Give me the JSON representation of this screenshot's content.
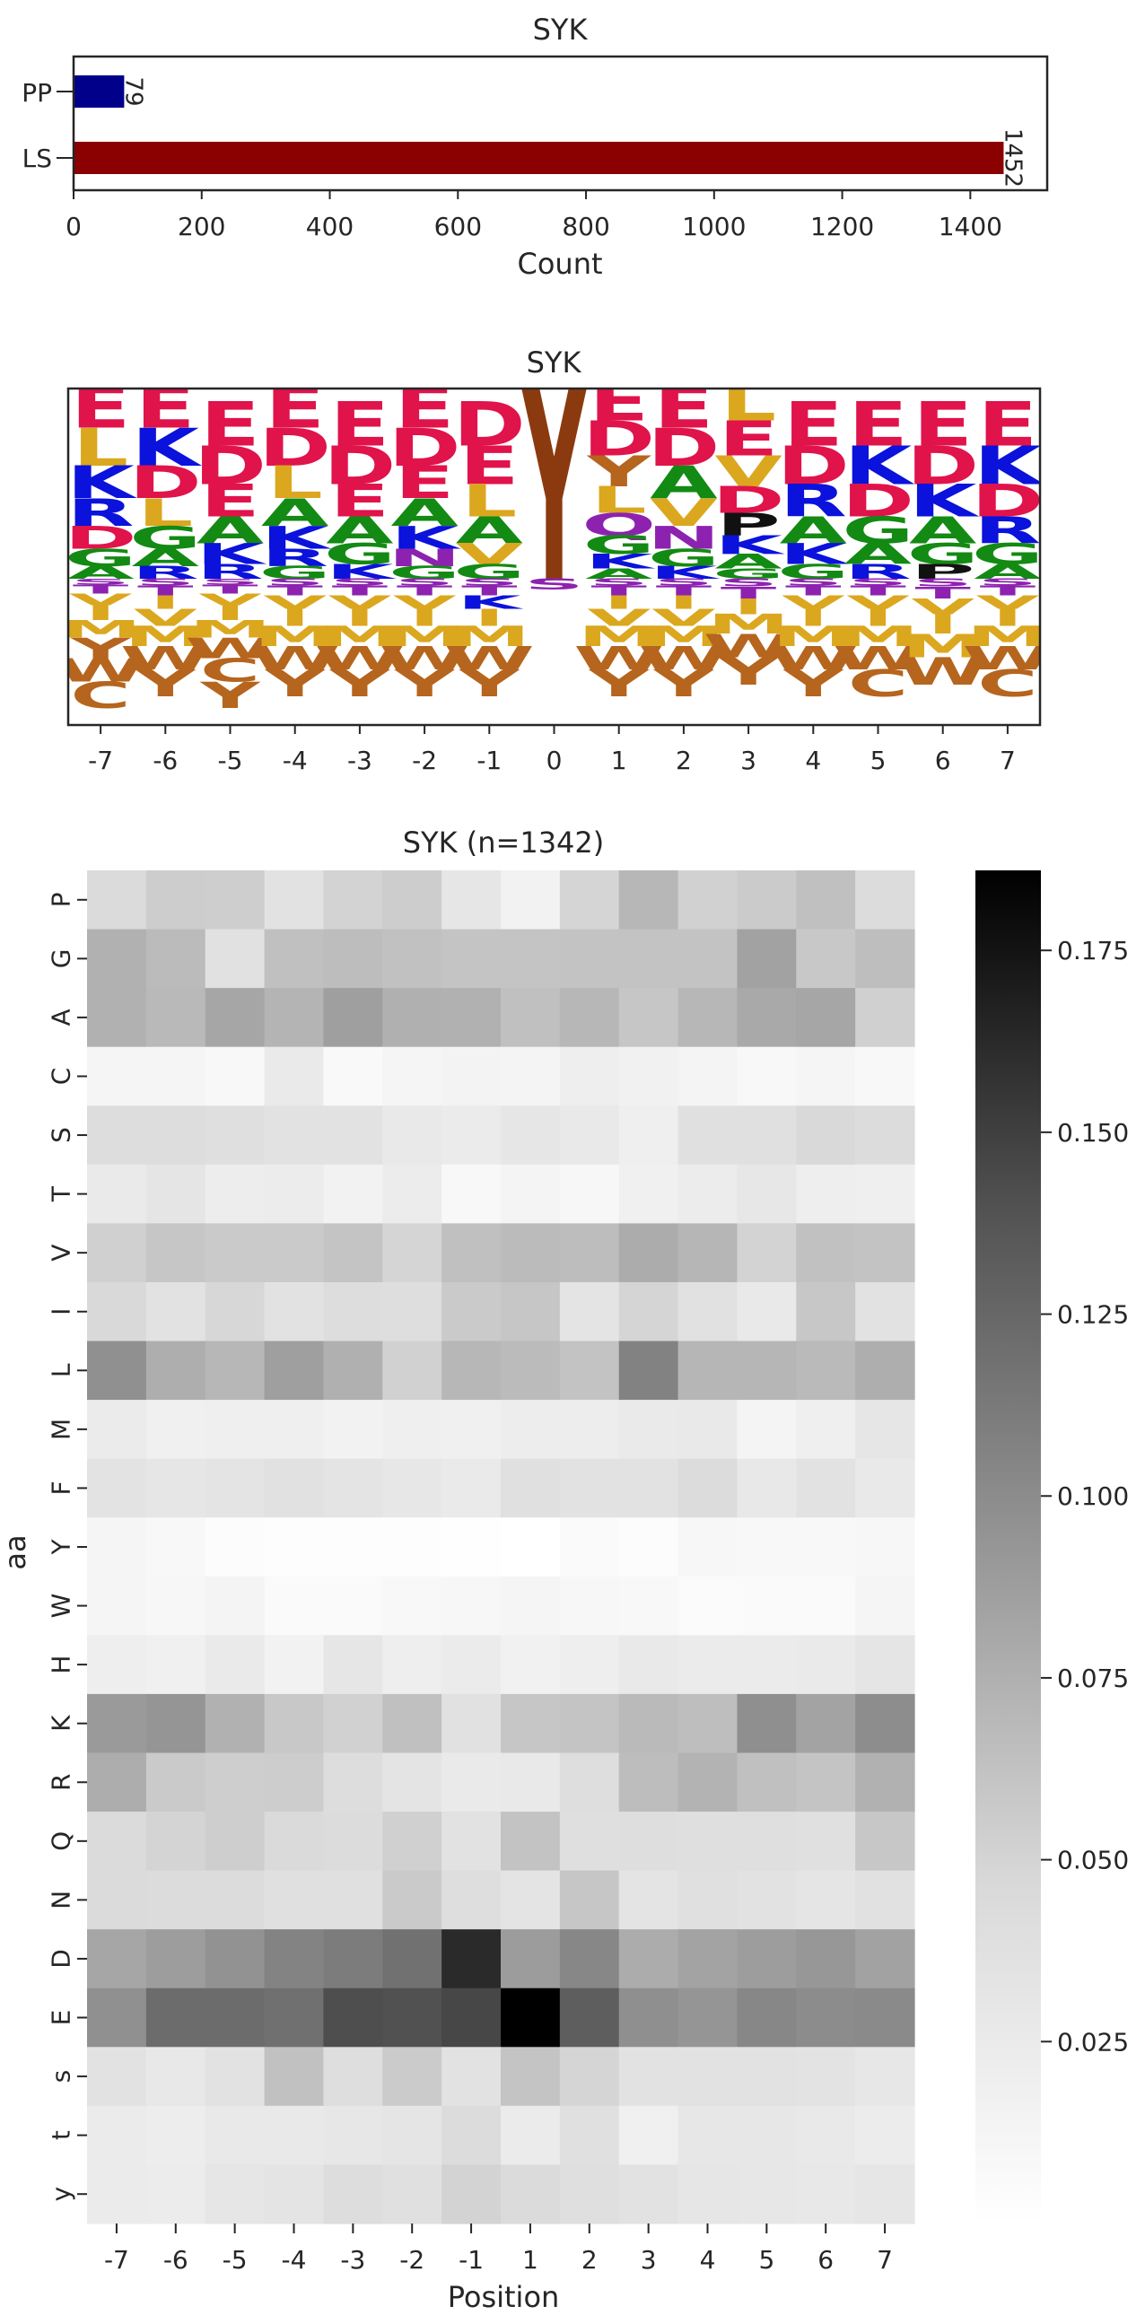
{
  "chart_data": [
    {
      "type": "bar",
      "orientation": "horizontal",
      "title": "SYK",
      "xlabel": "Count",
      "ylabel": "",
      "categories": [
        "PP",
        "LS"
      ],
      "values": [
        79,
        1452
      ],
      "value_labels": [
        "79",
        "1452"
      ],
      "colors": [
        "#00008b",
        "#8b0000"
      ],
      "xlim": [
        0,
        1520
      ],
      "xticks": [
        0,
        200,
        400,
        600,
        800,
        1000,
        1200,
        1400
      ],
      "xtick_labels": [
        "0",
        "200",
        "400",
        "600",
        "800",
        "1000",
        "1200",
        "1400"
      ],
      "grid": false
    },
    {
      "type": "sequence_logo",
      "title": "SYK",
      "positions": [
        "-7",
        "-6",
        "-5",
        "-4",
        "-3",
        "-2",
        "-1",
        "0",
        "1",
        "2",
        "3",
        "4",
        "5",
        "6",
        "7"
      ],
      "color_scheme": {
        "acidic": "#e0134b",
        "basic": "#0a12dc",
        "hydrophobic_L_I_V": "#dba71e",
        "hydrophobic_A_G": "#138a13",
        "polar": "#8d22b0",
        "aromatic": "#b5651d",
        "tyrosine_center": "#8b3a10",
        "serine": "#8d22b0",
        "other": "#111111"
      },
      "letters": [
        {
          "pos": "-7",
          "up": [
            "E",
            "L",
            "K",
            "R",
            "D",
            "G",
            "A"
          ],
          "down": [
            "S",
            "T",
            "V",
            "I",
            "M",
            "Y",
            "W",
            "C"
          ]
        },
        {
          "pos": "-6",
          "up": [
            "E",
            "K",
            "D",
            "L",
            "G",
            "A",
            "R"
          ],
          "down": [
            "S",
            "T",
            "I",
            "V",
            "M",
            "W",
            "Y"
          ]
        },
        {
          "pos": "-5",
          "up": [
            "E",
            "D",
            "E",
            "A",
            "K",
            "R"
          ],
          "down": [
            "S",
            "T",
            "V",
            "I",
            "M",
            "W",
            "C",
            "Y"
          ]
        },
        {
          "pos": "-4",
          "up": [
            "E",
            "D",
            "L",
            "A",
            "K",
            "R",
            "G"
          ],
          "down": [
            "S",
            "T",
            "V",
            "I",
            "M",
            "W",
            "Y"
          ]
        },
        {
          "pos": "-3",
          "up": [
            "E",
            "D",
            "E",
            "A",
            "G",
            "K"
          ],
          "down": [
            "S",
            "T",
            "V",
            "I",
            "M",
            "W",
            "Y"
          ]
        },
        {
          "pos": "-2",
          "up": [
            "E",
            "D",
            "E",
            "A",
            "K",
            "N",
            "G"
          ],
          "down": [
            "S",
            "T",
            "V",
            "I",
            "M",
            "W",
            "Y"
          ]
        },
        {
          "pos": "-1",
          "up": [
            "D",
            "E",
            "L",
            "A",
            "V",
            "G"
          ],
          "down": [
            "S",
            "T",
            "K",
            "I",
            "M",
            "W",
            "Y"
          ]
        },
        {
          "pos": "0",
          "up": [
            "Y"
          ],
          "down": [
            "S"
          ]
        },
        {
          "pos": "1",
          "up": [
            "E",
            "D",
            "Y",
            "L",
            "Q",
            "G",
            "K",
            "A"
          ],
          "down": [
            "S",
            "T",
            "I",
            "V",
            "M",
            "W",
            "Y"
          ]
        },
        {
          "pos": "2",
          "up": [
            "E",
            "D",
            "A",
            "V",
            "N",
            "G",
            "K"
          ],
          "down": [
            "S",
            "T",
            "I",
            "V",
            "M",
            "W",
            "Y"
          ]
        },
        {
          "pos": "3",
          "up": [
            "L",
            "E",
            "V",
            "D",
            "P",
            "K",
            "A",
            "G"
          ],
          "down": [
            "S",
            "T",
            "I",
            "M",
            "W",
            "Y"
          ]
        },
        {
          "pos": "4",
          "up": [
            "E",
            "D",
            "R",
            "A",
            "K",
            "G"
          ],
          "down": [
            "S",
            "T",
            "V",
            "I",
            "M",
            "W",
            "Y"
          ]
        },
        {
          "pos": "5",
          "up": [
            "E",
            "K",
            "D",
            "G",
            "A",
            "R"
          ],
          "down": [
            "S",
            "T",
            "V",
            "I",
            "M",
            "W",
            "C"
          ]
        },
        {
          "pos": "6",
          "up": [
            "E",
            "D",
            "K",
            "A",
            "G",
            "P"
          ],
          "down": [
            "S",
            "T",
            "V",
            "I",
            "M",
            "W"
          ]
        },
        {
          "pos": "7",
          "up": [
            "E",
            "K",
            "D",
            "R",
            "G",
            "A"
          ],
          "down": [
            "S",
            "T",
            "V",
            "I",
            "M",
            "W",
            "C"
          ]
        }
      ]
    },
    {
      "type": "heatmap",
      "title": "SYK (n=1342)",
      "xlabel": "Position",
      "ylabel": "aa",
      "x": [
        "-7",
        "-6",
        "-5",
        "-4",
        "-3",
        "-2",
        "-1",
        "1",
        "2",
        "3",
        "4",
        "5",
        "6",
        "7"
      ],
      "y": [
        "P",
        "G",
        "A",
        "C",
        "S",
        "T",
        "V",
        "I",
        "L",
        "M",
        "F",
        "Y",
        "W",
        "H",
        "K",
        "R",
        "Q",
        "N",
        "D",
        "E",
        "s",
        "t",
        "y"
      ],
      "colormap": "Greys",
      "vmin": 0,
      "vmax": 0.186,
      "colorbar_ticks": [
        0.025,
        0.05,
        0.075,
        0.1,
        0.125,
        0.15,
        0.175
      ],
      "colorbar_tick_labels": [
        "0.025",
        "0.050",
        "0.075",
        "0.100",
        "0.125",
        "0.150",
        "0.175"
      ],
      "values": [
        [
          0.044,
          0.055,
          0.054,
          0.036,
          0.051,
          0.055,
          0.031,
          0.016,
          0.049,
          0.07,
          0.052,
          0.056,
          0.064,
          0.043
        ],
        [
          0.074,
          0.067,
          0.037,
          0.064,
          0.066,
          0.063,
          0.061,
          0.061,
          0.062,
          0.062,
          0.062,
          0.085,
          0.058,
          0.065
        ],
        [
          0.074,
          0.069,
          0.082,
          0.072,
          0.087,
          0.075,
          0.074,
          0.064,
          0.07,
          0.06,
          0.07,
          0.08,
          0.082,
          0.053
        ],
        [
          0.012,
          0.012,
          0.009,
          0.026,
          0.007,
          0.012,
          0.015,
          0.014,
          0.021,
          0.017,
          0.013,
          0.008,
          0.012,
          0.008
        ],
        [
          0.041,
          0.041,
          0.039,
          0.035,
          0.035,
          0.027,
          0.024,
          0.03,
          0.027,
          0.019,
          0.038,
          0.038,
          0.046,
          0.043
        ],
        [
          0.026,
          0.032,
          0.022,
          0.023,
          0.016,
          0.023,
          0.009,
          0.014,
          0.01,
          0.018,
          0.023,
          0.029,
          0.021,
          0.02
        ],
        [
          0.053,
          0.06,
          0.057,
          0.057,
          0.061,
          0.049,
          0.064,
          0.067,
          0.066,
          0.078,
          0.071,
          0.051,
          0.063,
          0.062
        ],
        [
          0.046,
          0.035,
          0.048,
          0.035,
          0.041,
          0.04,
          0.057,
          0.06,
          0.033,
          0.049,
          0.037,
          0.027,
          0.059,
          0.035
        ],
        [
          0.097,
          0.076,
          0.07,
          0.087,
          0.075,
          0.052,
          0.07,
          0.067,
          0.062,
          0.107,
          0.071,
          0.071,
          0.068,
          0.076
        ],
        [
          0.024,
          0.018,
          0.019,
          0.02,
          0.016,
          0.019,
          0.018,
          0.022,
          0.022,
          0.026,
          0.027,
          0.013,
          0.019,
          0.031
        ],
        [
          0.034,
          0.031,
          0.033,
          0.037,
          0.033,
          0.029,
          0.026,
          0.038,
          0.036,
          0.035,
          0.043,
          0.028,
          0.036,
          0.027
        ],
        [
          0.012,
          0.008,
          0.004,
          0.002,
          0.003,
          0.002,
          0.001,
          0.0,
          0.006,
          0.004,
          0.01,
          0.009,
          0.008,
          0.01
        ],
        [
          0.012,
          0.01,
          0.013,
          0.006,
          0.006,
          0.008,
          0.01,
          0.012,
          0.01,
          0.009,
          0.005,
          0.006,
          0.006,
          0.012
        ],
        [
          0.021,
          0.018,
          0.026,
          0.016,
          0.03,
          0.021,
          0.024,
          0.017,
          0.021,
          0.027,
          0.025,
          0.025,
          0.026,
          0.032
        ],
        [
          0.09,
          0.094,
          0.074,
          0.058,
          0.052,
          0.064,
          0.037,
          0.06,
          0.061,
          0.068,
          0.065,
          0.098,
          0.084,
          0.099
        ],
        [
          0.077,
          0.057,
          0.054,
          0.055,
          0.042,
          0.033,
          0.026,
          0.027,
          0.04,
          0.066,
          0.073,
          0.064,
          0.061,
          0.074
        ],
        [
          0.044,
          0.05,
          0.054,
          0.045,
          0.043,
          0.053,
          0.035,
          0.062,
          0.039,
          0.04,
          0.039,
          0.039,
          0.038,
          0.059
        ],
        [
          0.044,
          0.043,
          0.043,
          0.038,
          0.038,
          0.057,
          0.04,
          0.033,
          0.06,
          0.033,
          0.038,
          0.035,
          0.032,
          0.037
        ],
        [
          0.082,
          0.088,
          0.096,
          0.106,
          0.111,
          0.118,
          0.162,
          0.089,
          0.103,
          0.078,
          0.084,
          0.088,
          0.092,
          0.085
        ],
        [
          0.097,
          0.122,
          0.122,
          0.119,
          0.142,
          0.14,
          0.146,
          0.186,
          0.131,
          0.098,
          0.094,
          0.103,
          0.1,
          0.101
        ],
        [
          0.035,
          0.028,
          0.035,
          0.063,
          0.04,
          0.056,
          0.035,
          0.061,
          0.049,
          0.035,
          0.036,
          0.036,
          0.034,
          0.029
        ],
        [
          0.024,
          0.022,
          0.027,
          0.027,
          0.029,
          0.032,
          0.043,
          0.024,
          0.038,
          0.018,
          0.029,
          0.029,
          0.027,
          0.023
        ],
        [
          0.025,
          0.023,
          0.031,
          0.033,
          0.041,
          0.038,
          0.051,
          0.044,
          0.039,
          0.036,
          0.03,
          0.029,
          0.028,
          0.03
        ]
      ]
    }
  ]
}
